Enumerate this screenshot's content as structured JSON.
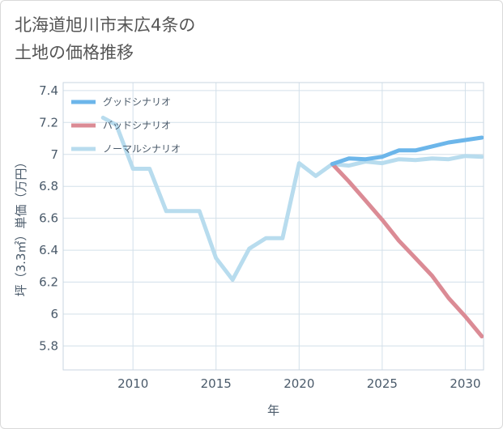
{
  "chart_data": {
    "type": "line",
    "title_lines": [
      "北海道旭川市末広4条の",
      "土地の価格推移"
    ],
    "xlabel": "年",
    "ylabel": "坪（3.3㎡）単価（万円）",
    "xlim": [
      2005.8,
      2031.1
    ],
    "ylim": [
      5.65,
      7.45
    ],
    "x_ticks": [
      2010,
      2015,
      2020,
      2025,
      2030
    ],
    "y_ticks": [
      5.8,
      6,
      6.2,
      6.4,
      6.6,
      6.8,
      7,
      7.2,
      7.4
    ],
    "y_tick_labels": [
      "5.8",
      "6",
      "6.2",
      "6.4",
      "6.6",
      "6.8",
      "7",
      "7.2",
      "7.4"
    ],
    "grid": true,
    "legend_position": "top-left",
    "series": [
      {
        "name": "グッドシナリオ",
        "color": "#6cb6ea",
        "points": [
          [
            2022,
            6.94
          ],
          [
            2023,
            6.975
          ],
          [
            2024,
            6.97
          ],
          [
            2025,
            6.985
          ],
          [
            2026,
            7.025
          ],
          [
            2027,
            7.025
          ],
          [
            2028,
            7.05
          ],
          [
            2029,
            7.075
          ],
          [
            2030,
            7.09
          ],
          [
            2031,
            7.105
          ]
        ]
      },
      {
        "name": "バッドシナリオ",
        "color": "#db8b95",
        "points": [
          [
            2022,
            6.94
          ],
          [
            2023,
            6.83
          ],
          [
            2024,
            6.71
          ],
          [
            2025,
            6.59
          ],
          [
            2026,
            6.46
          ],
          [
            2027,
            6.35
          ],
          [
            2028,
            6.24
          ],
          [
            2029,
            6.1
          ],
          [
            2030,
            5.985
          ],
          [
            2031,
            5.86
          ]
        ]
      },
      {
        "name": "ノーマルシナリオ",
        "color": "#b8dcee",
        "points": [
          [
            2008.2,
            7.23
          ],
          [
            2009,
            7.185
          ],
          [
            2010,
            6.91
          ],
          [
            2011,
            6.91
          ],
          [
            2012,
            6.645
          ],
          [
            2013,
            6.645
          ],
          [
            2014,
            6.645
          ],
          [
            2015,
            6.35
          ],
          [
            2016,
            6.215
          ],
          [
            2017,
            6.41
          ],
          [
            2018,
            6.475
          ],
          [
            2019,
            6.475
          ],
          [
            2020,
            6.945
          ],
          [
            2021,
            6.865
          ],
          [
            2022,
            6.94
          ],
          [
            2023,
            6.93
          ],
          [
            2024,
            6.955
          ],
          [
            2025,
            6.945
          ],
          [
            2026,
            6.97
          ],
          [
            2027,
            6.965
          ],
          [
            2028,
            6.975
          ],
          [
            2029,
            6.97
          ],
          [
            2030,
            6.99
          ],
          [
            2031,
            6.985
          ]
        ]
      }
    ]
  }
}
